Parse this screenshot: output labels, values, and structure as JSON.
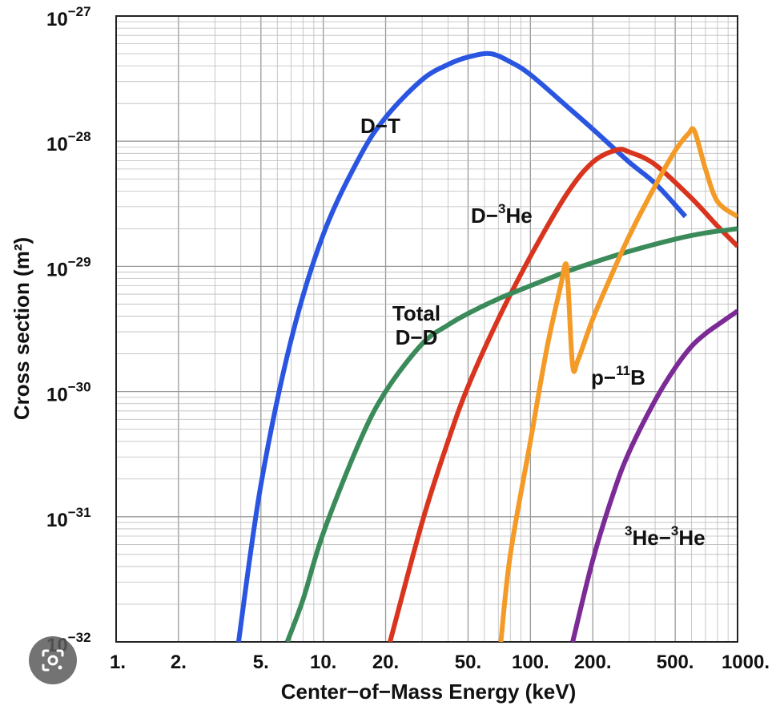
{
  "chart_data": {
    "type": "line",
    "xlabel": "Center−of−Mass Energy (keV)",
    "ylabel": "Cross section (m²)",
    "x_scale": "log",
    "y_scale": "log",
    "xlim": [
      1,
      1000
    ],
    "ylim": [
      1e-32,
      1e-27
    ],
    "grid": true,
    "x_ticks": [
      {
        "value": 1,
        "label": "1."
      },
      {
        "value": 2,
        "label": "2."
      },
      {
        "value": 5,
        "label": "5."
      },
      {
        "value": 10,
        "label": "10."
      },
      {
        "value": 20,
        "label": "20."
      },
      {
        "value": 50,
        "label": "50."
      },
      {
        "value": 100,
        "label": "100."
      },
      {
        "value": 200,
        "label": "200."
      },
      {
        "value": 500,
        "label": "500."
      },
      {
        "value": 1000,
        "label": "1000."
      }
    ],
    "y_ticks": [
      {
        "value": 1e-32,
        "base": "10",
        "exp": "−32"
      },
      {
        "value": 1e-31,
        "base": "10",
        "exp": "−31"
      },
      {
        "value": 1e-30,
        "base": "10",
        "exp": "−30"
      },
      {
        "value": 1e-29,
        "base": "10",
        "exp": "−29"
      },
      {
        "value": 1e-28,
        "base": "10",
        "exp": "−28"
      },
      {
        "value": 1e-27,
        "base": "10",
        "exp": "−27"
      }
    ],
    "series": [
      {
        "id": "dt",
        "label_main": "D−T",
        "label_parts": [
          "D−T"
        ],
        "color": "#2a55e0",
        "x": [
          3.9,
          5,
          7,
          10,
          15,
          20,
          30,
          40,
          50,
          64,
          80,
          100,
          150,
          200,
          300,
          400,
          560
        ],
        "y": [
          1e-32,
          1.8e-31,
          2.6e-30,
          1.8e-29,
          7.5e-29,
          1.55e-28,
          3.1e-28,
          4.1e-28,
          4.7e-28,
          5e-28,
          4.3e-28,
          3.4e-28,
          1.9e-28,
          1.25e-28,
          6.8e-29,
          4.6e-29,
          2.5e-29
        ]
      },
      {
        "id": "dhe3",
        "label_parts": [
          "D−",
          "3",
          "He"
        ],
        "color": "#d8341e",
        "x": [
          21,
          30,
          40,
          50,
          70,
          100,
          150,
          200,
          260,
          300,
          400,
          600,
          800,
          1000
        ],
        "y": [
          1e-32,
          9e-32,
          4e-31,
          1.1e-30,
          3.8e-30,
          1.2e-29,
          3.8e-29,
          6.8e-29,
          8.5e-29,
          8.2e-29,
          6.5e-29,
          3.5e-29,
          2.1e-29,
          1.45e-29
        ]
      },
      {
        "id": "dd",
        "label_parts": [
          "Total",
          "D−D"
        ],
        "color": "#3a8a5a",
        "x": [
          6.7,
          8,
          10,
          15,
          20,
          30,
          40,
          50,
          70,
          100,
          150,
          200,
          300,
          500,
          700,
          1000
        ],
        "y": [
          1e-32,
          2.2e-32,
          7.4e-32,
          4e-31,
          1e-30,
          2.4e-30,
          3.4e-30,
          4.2e-30,
          5.5e-30,
          7e-30,
          9.1e-30,
          1.07e-29,
          1.32e-29,
          1.65e-29,
          1.85e-29,
          2e-29
        ]
      },
      {
        "id": "pb11",
        "label_parts": [
          "p−",
          "11",
          "B"
        ],
        "color": "#f39a27",
        "x": [
          72,
          80,
          100,
          120,
          140,
          148,
          152,
          160,
          170,
          200,
          250,
          300,
          400,
          500,
          580,
          620,
          700,
          800,
          1000
        ],
        "y": [
          1e-32,
          5e-32,
          4e-31,
          2.2e-30,
          7e-30,
          1.05e-29,
          7e-30,
          1.6e-30,
          1.8e-30,
          3.8e-30,
          9e-30,
          1.75e-29,
          4.4e-29,
          8.4e-29,
          1.15e-28,
          1.2e-28,
          6e-29,
          3.3e-29,
          2.5e-29
        ]
      },
      {
        "id": "he3he3",
        "label_parts": [
          "3",
          "He−",
          "3",
          "He"
        ],
        "color": "#7b2a96",
        "x": [
          160,
          200,
          250,
          300,
          400,
          500,
          600,
          700,
          800,
          900,
          1000
        ],
        "y": [
          1e-32,
          4.5e-32,
          1.5e-31,
          3.3e-31,
          8.5e-31,
          1.55e-30,
          2.3e-30,
          2.9e-30,
          3.4e-30,
          3.9e-30,
          4.4e-30
        ]
      }
    ]
  }
}
